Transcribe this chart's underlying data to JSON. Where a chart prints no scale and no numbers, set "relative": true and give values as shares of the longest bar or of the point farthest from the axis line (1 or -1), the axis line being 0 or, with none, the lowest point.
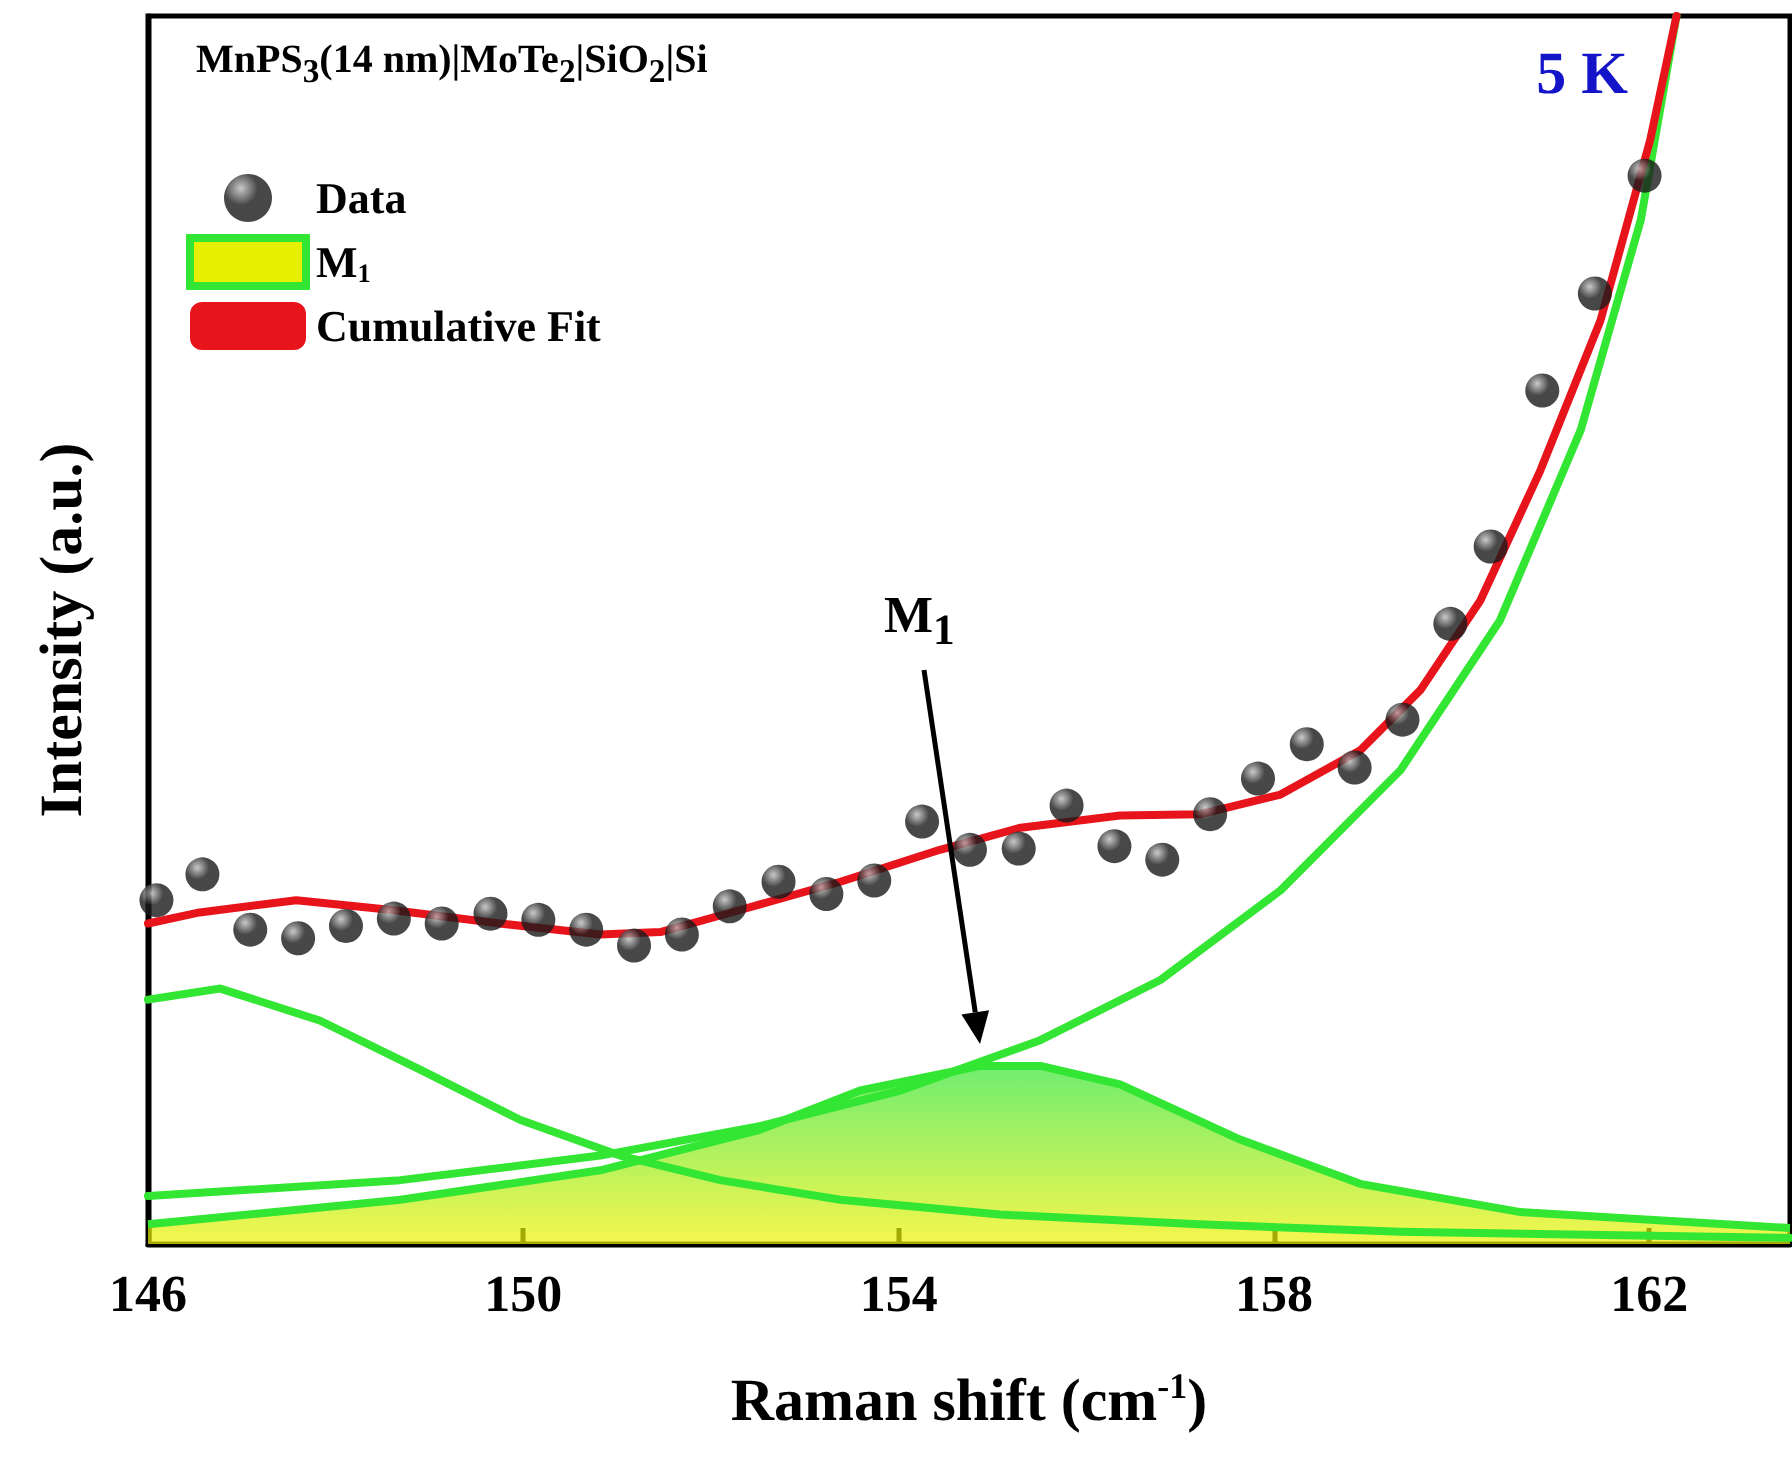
{
  "chart_data": {
    "type": "scatter",
    "relative": true,
    "xlabel": "Raman shift (cm$^{-1}$)",
    "ylabel": "Intensity (a.u.)",
    "legend_title": "MnPS$_{3}$(14 nm)|MoTe$_{2}$|SiO$_{2}$|Si",
    "legend": "top left",
    "xlim": [
      146,
      163.5
    ],
    "xticks": [
      146,
      150,
      154,
      158,
      162
    ],
    "grid": false,
    "annotations": [
      "5 K",
      "M$_{1}$"
    ],
    "series": [
      {
        "name": "Data",
        "marker": "circle",
        "color": "#1a1a1a",
        "x": [
          146.09,
          146.58,
          147.09,
          147.6,
          148.11,
          148.62,
          149.13,
          149.65,
          150.16,
          150.67,
          151.18,
          151.69,
          152.2,
          152.72,
          153.23,
          153.74,
          154.25,
          154.76,
          155.28,
          155.79,
          156.3,
          156.81,
          157.32,
          157.83,
          158.35,
          158.86,
          159.37,
          159.88,
          160.31,
          160.86,
          161.42,
          161.95
        ],
        "values": [
          0.28,
          0.301,
          0.256,
          0.249,
          0.259,
          0.265,
          0.261,
          0.269,
          0.264,
          0.256,
          0.243,
          0.252,
          0.275,
          0.295,
          0.285,
          0.296,
          0.344,
          0.321,
          0.322,
          0.357,
          0.324,
          0.313,
          0.35,
          0.379,
          0.407,
          0.388,
          0.427,
          0.505,
          0.568,
          0.695,
          0.774,
          0.87
        ]
      },
      {
        "name": "M$_{1}$",
        "type": "area",
        "marker": "none",
        "line_style": "solid",
        "color": "#33e633",
        "x": [
          146,
          148.69,
          150.82,
          152.52,
          153.59,
          154.87,
          155.51,
          156.36,
          157.64,
          158.92,
          160.63,
          163.5
        ],
        "values": [
          0.016,
          0.036,
          0.06,
          0.093,
          0.125,
          0.145,
          0.145,
          0.13,
          0.085,
          0.049,
          0.026,
          0.013
        ]
      },
      {
        "type": "line",
        "marker": "none",
        "line_style": "solid",
        "color": "#33e633",
        "x": [
          146,
          146.77,
          147.83,
          148.9,
          149.97,
          151.03,
          152.1,
          153.38,
          155.08,
          157.2,
          159.35,
          163.5
        ],
        "values": [
          0.199,
          0.208,
          0.182,
          0.142,
          0.101,
          0.072,
          0.052,
          0.036,
          0.024,
          0.016,
          0.01,
          0.005
        ]
      },
      {
        "type": "line",
        "marker": "none",
        "line_style": "solid",
        "color": "#33e633",
        "x": [
          146,
          148.69,
          150.82,
          152.52,
          154.02,
          155.51,
          156.79,
          158.07,
          159.35,
          160.41,
          161.27,
          161.91,
          162.29
        ],
        "values": [
          0.039,
          0.052,
          0.072,
          0.096,
          0.125,
          0.166,
          0.215,
          0.288,
          0.386,
          0.508,
          0.663,
          0.834,
          1.0
        ]
      },
      {
        "name": "Cumulative Fit",
        "type": "line",
        "marker": "none",
        "line_style": "solid",
        "color": "#e8141c",
        "x": [
          146,
          146.55,
          147.58,
          148.6,
          149.75,
          150.82,
          151.46,
          152.31,
          153.38,
          154.44,
          155.3,
          156.36,
          157.22,
          158.07,
          158.92,
          159.56,
          160.2,
          160.84,
          161.48,
          162.01,
          162.29
        ],
        "values": [
          0.261,
          0.27,
          0.28,
          0.272,
          0.261,
          0.252,
          0.254,
          0.272,
          0.295,
          0.321,
          0.339,
          0.349,
          0.35,
          0.366,
          0.402,
          0.451,
          0.524,
          0.63,
          0.752,
          0.899,
          1.0
        ]
      }
    ]
  }
}
